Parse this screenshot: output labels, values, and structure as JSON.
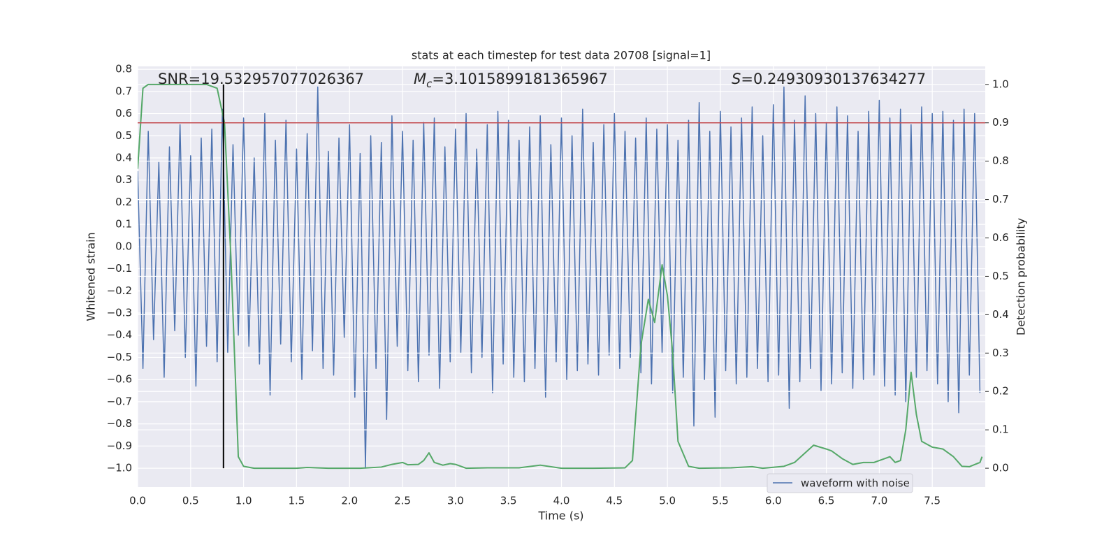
{
  "chart_data": {
    "type": "line",
    "title": "stats at each timestep for test data 20708 [signal=1]",
    "xlabel": "Time (s)",
    "ylabel": "Whitened strain",
    "y2label": "Detection probability",
    "annotations": [
      {
        "text": "SNR=19.532957077026367"
      },
      {
        "symbol": "M",
        "subscript": "c",
        "text": "=3.1015899181365967"
      },
      {
        "symbol": "S",
        "text": "=0.24930930137634277"
      }
    ],
    "xlim": [
      0,
      8.0
    ],
    "ylim": [
      -1.085,
      0.813
    ],
    "y2lim": [
      -0.049,
      1.047
    ],
    "xticks": [
      {
        "value": 0,
        "label": "0.0"
      },
      0.5,
      {
        "value": 1,
        "label": "1.0"
      },
      1.5,
      {
        "value": 2,
        "label": "2.0"
      },
      2.5,
      {
        "value": 3,
        "label": "3.0"
      },
      3.5,
      {
        "value": 4,
        "label": "4.0"
      },
      4.5,
      {
        "value": 5,
        "label": "5.0"
      },
      5.5,
      {
        "value": 6,
        "label": "6.0"
      },
      6.5,
      {
        "value": 7,
        "label": "7.0"
      },
      7.5
    ],
    "yticks": [
      {
        "value": -1.0,
        "label": "−1.0"
      },
      {
        "value": -0.9,
        "label": "−0.9"
      },
      {
        "value": -0.8,
        "label": "−0.8"
      },
      {
        "value": -0.7,
        "label": "−0.7"
      },
      {
        "value": -0.6,
        "label": "−0.6"
      },
      {
        "value": -0.5,
        "label": "−0.5"
      },
      {
        "value": -0.4,
        "label": "−0.4"
      },
      {
        "value": -0.3,
        "label": "−0.3"
      },
      {
        "value": -0.2,
        "label": "−0.2"
      },
      {
        "value": -0.1,
        "label": "−0.1"
      },
      {
        "value": 0,
        "label": "0.0"
      },
      0.1,
      0.2,
      0.3,
      0.4,
      0.5,
      0.6,
      0.7,
      0.8
    ],
    "y2ticks": [
      {
        "value": 0,
        "label": "0.0"
      },
      0.1,
      0.2,
      0.3,
      0.4,
      0.5,
      0.6,
      0.7,
      0.8,
      0.9,
      {
        "value": 1,
        "label": "1.0"
      }
    ],
    "grid": true,
    "legend": "lower right",
    "series": [
      {
        "name": "waveform with noise",
        "color": "#4c72b0",
        "x": [
          0,
          0.05,
          0.1,
          0.15,
          0.2,
          0.25,
          0.3,
          0.35,
          0.4,
          0.45,
          0.5,
          0.55,
          0.6,
          0.65,
          0.7,
          0.75,
          0.8,
          0.85,
          0.9,
          0.95,
          1,
          1.05,
          1.1,
          1.15,
          1.2,
          1.25,
          1.3,
          1.35,
          1.4,
          1.45,
          1.5,
          1.55,
          1.6,
          1.65,
          1.7,
          1.75,
          1.8,
          1.85,
          1.9,
          1.95,
          2,
          2.05,
          2.1,
          2.15,
          2.2,
          2.25,
          2.3,
          2.35,
          2.4,
          2.45,
          2.5,
          2.55,
          2.6,
          2.65,
          2.7,
          2.75,
          2.8,
          2.85,
          2.9,
          2.95,
          3,
          3.05,
          3.1,
          3.15,
          3.2,
          3.25,
          3.3,
          3.35,
          3.4,
          3.45,
          3.5,
          3.55,
          3.6,
          3.65,
          3.7,
          3.75,
          3.8,
          3.85,
          3.9,
          3.95,
          4,
          4.05,
          4.1,
          4.15,
          4.2,
          4.25,
          4.3,
          4.35,
          4.4,
          4.45,
          4.5,
          4.55,
          4.6,
          4.65,
          4.7,
          4.75,
          4.8,
          4.85,
          4.9,
          4.95,
          5,
          5.05,
          5.1,
          5.15,
          5.2,
          5.25,
          5.3,
          5.35,
          5.4,
          5.45,
          5.5,
          5.55,
          5.6,
          5.65,
          5.7,
          5.75,
          5.8,
          5.85,
          5.9,
          5.95,
          6,
          6.05,
          6.1,
          6.15,
          6.2,
          6.25,
          6.3,
          6.35,
          6.4,
          6.45,
          6.5,
          6.55,
          6.6,
          6.65,
          6.7,
          6.75,
          6.8,
          6.85,
          6.9,
          6.95,
          7,
          7.05,
          7.1,
          7.15,
          7.2,
          7.25,
          7.3,
          7.35,
          7.4,
          7.45,
          7.5,
          7.55,
          7.6,
          7.65,
          7.7,
          7.75,
          7.8,
          7.85,
          7.9,
          7.95
        ],
        "values": [
          0.34,
          -0.55,
          0.52,
          -0.42,
          0.38,
          -0.59,
          0.45,
          -0.38,
          0.55,
          -0.5,
          0.41,
          -0.63,
          0.49,
          -0.45,
          0.53,
          -0.52,
          0.62,
          -0.48,
          0.46,
          -0.4,
          0.58,
          -0.45,
          0.4,
          -0.53,
          0.6,
          -0.67,
          0.48,
          -0.44,
          0.57,
          -0.52,
          0.44,
          -0.6,
          0.51,
          -0.47,
          0.72,
          -0.55,
          0.43,
          -0.58,
          0.49,
          -0.41,
          0.55,
          -0.68,
          0.42,
          -1.0,
          0.5,
          -0.55,
          0.47,
          -0.78,
          0.59,
          -0.45,
          0.52,
          -0.56,
          0.48,
          -0.61,
          0.56,
          -0.49,
          0.58,
          -0.64,
          0.45,
          -0.52,
          0.53,
          -0.48,
          0.6,
          -0.57,
          0.44,
          -0.5,
          0.55,
          -0.66,
          0.61,
          -0.53,
          0.57,
          -0.59,
          0.48,
          -0.61,
          0.54,
          -0.55,
          0.59,
          -0.68,
          0.46,
          -0.52,
          0.58,
          -0.6,
          0.5,
          -0.56,
          0.62,
          -0.53,
          0.47,
          -0.58,
          0.55,
          -0.49,
          0.6,
          -0.55,
          0.52,
          -0.5,
          0.49,
          -0.57,
          0.58,
          -0.62,
          0.53,
          -0.48,
          0.55,
          -0.66,
          0.48,
          -0.59,
          0.57,
          -0.81,
          0.65,
          -0.6,
          0.52,
          -0.77,
          0.61,
          -0.56,
          0.54,
          -0.62,
          0.58,
          -0.59,
          0.63,
          -0.55,
          0.5,
          -0.61,
          0.64,
          -0.58,
          0.72,
          -0.73,
          0.57,
          -0.61,
          0.68,
          -0.55,
          0.6,
          -0.65,
          0.56,
          -0.62,
          0.63,
          -0.57,
          0.59,
          -0.64,
          0.52,
          -0.6,
          0.61,
          -0.58,
          0.66,
          -0.63,
          0.58,
          -0.67,
          0.62,
          -0.7,
          0.55,
          -0.59,
          0.63,
          -0.56,
          0.6,
          -0.62,
          0.61,
          -0.7,
          0.57,
          -0.75,
          0.62,
          -0.58,
          0.6,
          -0.66
        ]
      },
      {
        "color": "#55a868",
        "axis": "y2",
        "x": [
          0,
          0.05,
          0.1,
          0.3,
          0.5,
          0.65,
          0.75,
          0.82,
          0.88,
          0.95,
          1,
          1.1,
          1.5,
          1.6,
          1.8,
          2.1,
          2.3,
          2.4,
          2.5,
          2.55,
          2.65,
          2.7,
          2.75,
          2.8,
          2.88,
          2.95,
          3,
          3.1,
          3.3,
          3.6,
          3.8,
          4,
          4.3,
          4.6,
          4.67,
          4.75,
          4.82,
          4.88,
          4.95,
          5,
          5.05,
          5.1,
          5.2,
          5.3,
          5.6,
          5.8,
          5.9,
          6.1,
          6.2,
          6.3,
          6.38,
          6.5,
          6.55,
          6.65,
          6.75,
          6.85,
          6.95,
          7.1,
          7.15,
          7.2,
          7.25,
          7.3,
          7.35,
          7.4,
          7.5,
          7.6,
          7.7,
          7.78,
          7.85,
          7.95,
          7.97
        ],
        "values": [
          0.78,
          0.99,
          1.0,
          1.0,
          1.0,
          1.0,
          0.99,
          0.9,
          0.55,
          0.03,
          0.005,
          0.0,
          0.0,
          0.002,
          0.0,
          0.0,
          0.003,
          0.01,
          0.015,
          0.009,
          0.01,
          0.02,
          0.04,
          0.015,
          0.008,
          0.012,
          0.01,
          0.0,
          0.001,
          0.001,
          0.008,
          0.0,
          0.0,
          0.001,
          0.02,
          0.32,
          0.44,
          0.38,
          0.53,
          0.45,
          0.3,
          0.07,
          0.005,
          0.0,
          0.001,
          0.004,
          0.0,
          0.005,
          0.015,
          0.04,
          0.06,
          0.05,
          0.045,
          0.025,
          0.01,
          0.015,
          0.015,
          0.03,
          0.015,
          0.02,
          0.1,
          0.25,
          0.14,
          0.07,
          0.055,
          0.05,
          0.03,
          0.005,
          0.004,
          0.015,
          0.03
        ]
      }
    ],
    "hlines": [
      {
        "y": 0.9,
        "axis": "y2",
        "color": "#c44e52"
      }
    ],
    "vlines": [
      {
        "x": 0.81,
        "ymin": 0,
        "ymax": 1,
        "axis": "y2",
        "color": "#000000"
      }
    ]
  }
}
